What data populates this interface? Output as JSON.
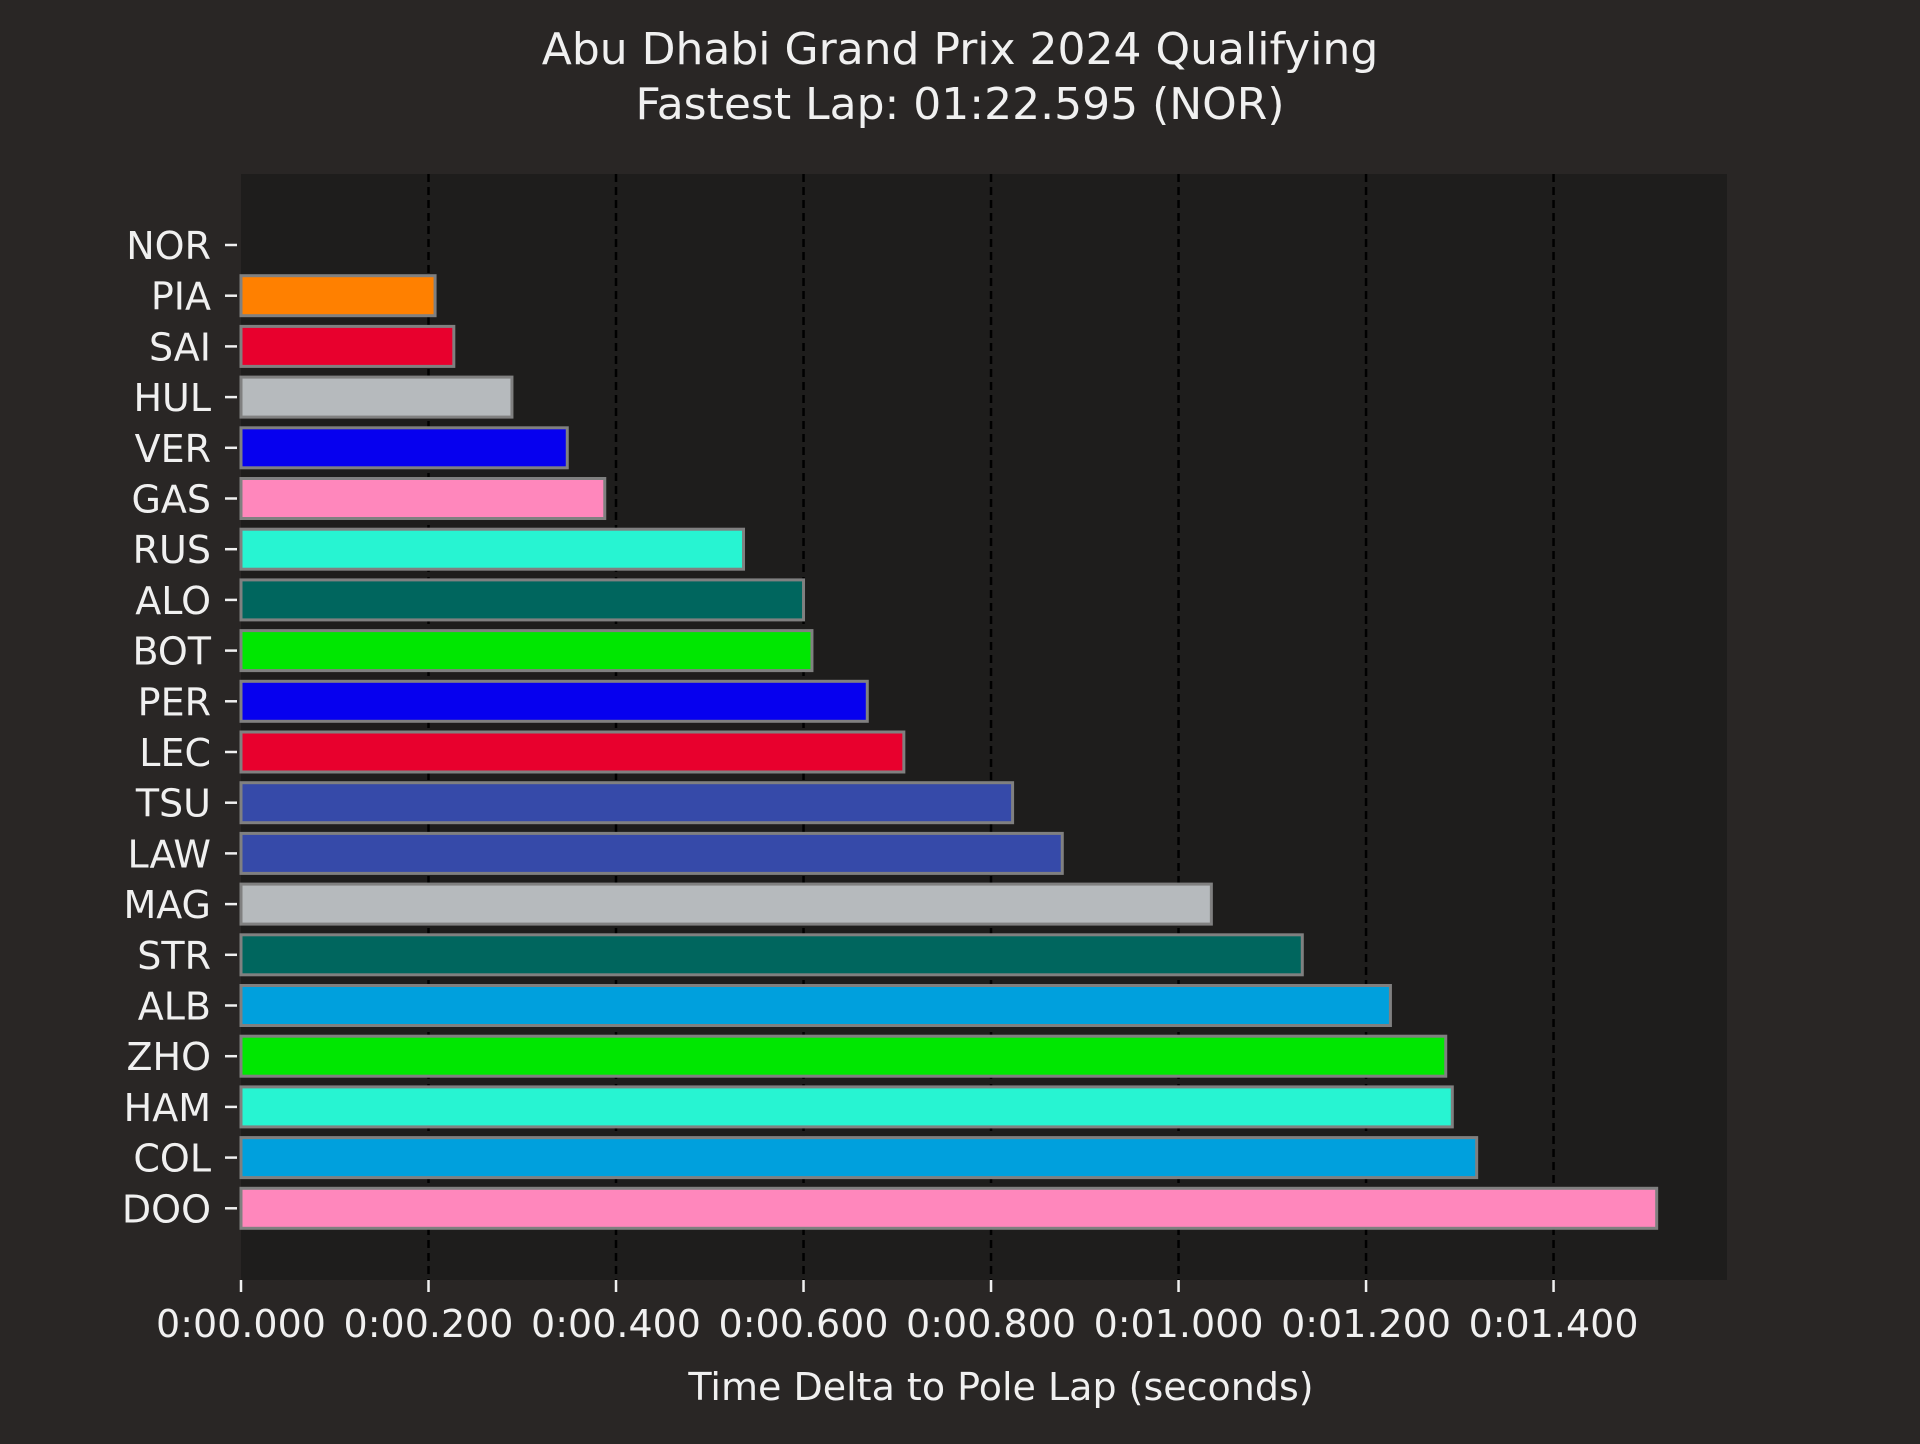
{
  "chart_data": {
    "type": "bar",
    "orientation": "horizontal",
    "title": "Abu Dhabi Grand Prix 2024 Qualifying",
    "subtitle": "Fastest Lap: 01:22.595 (NOR)",
    "xlabel": "Time Delta to Pole Lap (seconds)",
    "ylabel": "",
    "xlim": [
      0,
      1.585
    ],
    "xticks": [
      0,
      0.2,
      0.4,
      0.6,
      0.8,
      1.0,
      1.2,
      1.4
    ],
    "xtick_labels": [
      "0:00.000",
      "0:00.200",
      "0:00.400",
      "0:00.600",
      "0:00.800",
      "0:01.000",
      "0:01.200",
      "0:01.400"
    ],
    "grid": "x, dashed",
    "categories": [
      "NOR",
      "PIA",
      "SAI",
      "HUL",
      "VER",
      "GAS",
      "RUS",
      "ALO",
      "BOT",
      "PER",
      "LEC",
      "TSU",
      "LAW",
      "MAG",
      "STR",
      "ALB",
      "ZHO",
      "HAM",
      "COL",
      "DOO"
    ],
    "values": [
      0.0,
      0.207,
      0.227,
      0.289,
      0.348,
      0.388,
      0.536,
      0.6,
      0.609,
      0.668,
      0.707,
      0.823,
      0.876,
      1.035,
      1.132,
      1.226,
      1.285,
      1.292,
      1.318,
      1.51
    ],
    "colors": [
      "#ff8000",
      "#ff8000",
      "#e8002d",
      "#b6babd",
      "#0600ef",
      "#ff87bc",
      "#27f4d2",
      "#00665e",
      "#00e701",
      "#0600ef",
      "#e8002d",
      "#364aa9",
      "#364aa9",
      "#b6babd",
      "#00665e",
      "#00a0dd",
      "#00e701",
      "#27f4d2",
      "#00a0dd",
      "#ff87bc"
    ],
    "bar_edge_color": "#808080",
    "plot_background": "#1e1d1c",
    "figure_background": "#292625"
  }
}
